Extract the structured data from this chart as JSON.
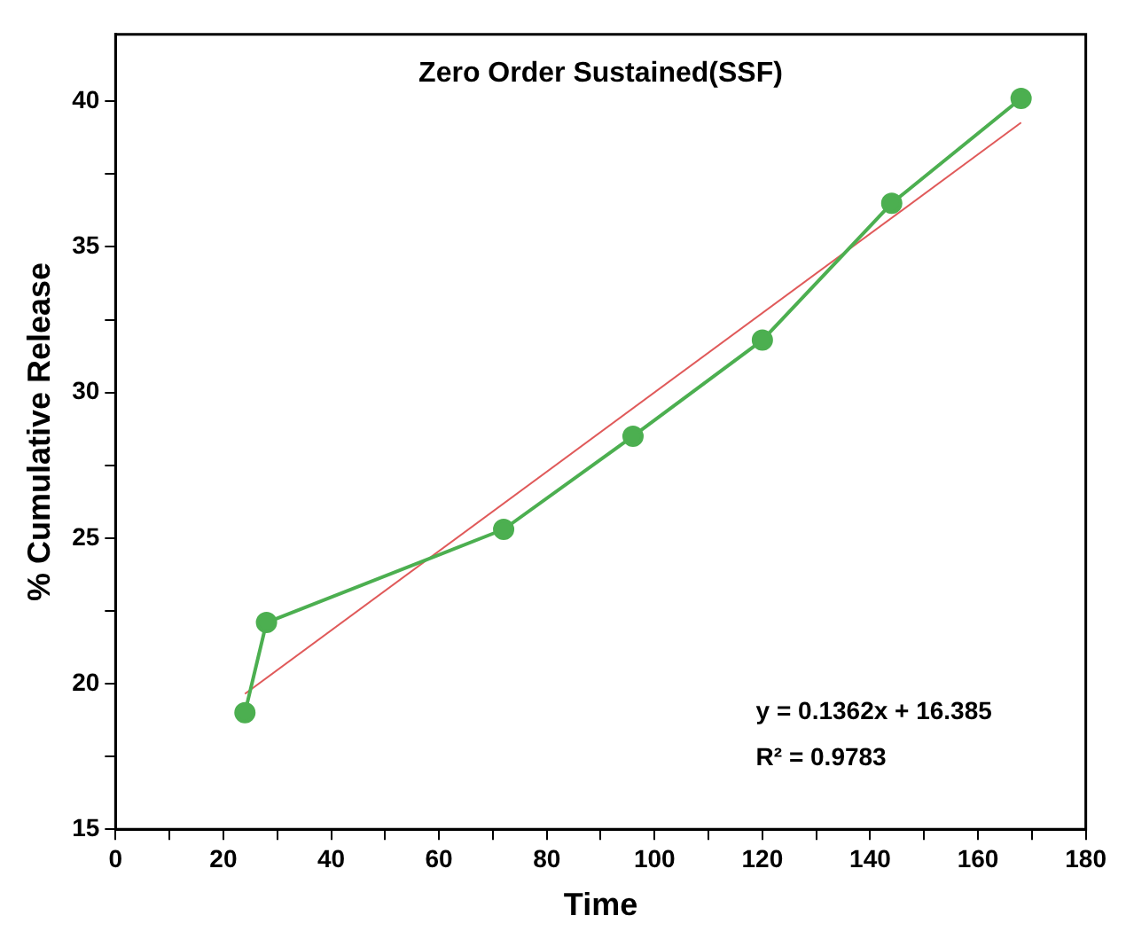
{
  "chart_data": {
    "type": "line",
    "title": "Zero Order Sustained(SSF)",
    "xlabel": "Time",
    "ylabel": "% Cumulative Release",
    "xlim": [
      0,
      180
    ],
    "xticks": [
      0,
      {
        "value": 10,
        "label": null
      },
      20,
      {
        "value": 30,
        "label": null
      },
      40,
      {
        "value": 50,
        "label": null
      },
      60,
      {
        "value": 70,
        "label": null
      },
      80,
      {
        "value": 90,
        "label": null
      },
      100,
      {
        "value": 110,
        "label": null
      },
      120,
      {
        "value": 130,
        "label": null
      },
      140,
      {
        "value": 150,
        "label": null
      },
      160,
      {
        "value": 170,
        "label": null
      },
      180
    ],
    "ylim": [
      15,
      42.3
    ],
    "yticks": [
      15,
      {
        "value": 17.5,
        "label": null
      },
      20,
      {
        "value": 22.5,
        "label": null
      },
      25,
      {
        "value": 27.5,
        "label": null
      },
      30,
      {
        "value": 32.5,
        "label": null
      },
      35,
      {
        "value": 37.5,
        "label": null
      },
      40
    ],
    "grid": false,
    "legend": false,
    "line_style": "solid",
    "series": [
      {
        "type": "line",
        "color": "#4caf50",
        "marker": "circle",
        "x": [
          24,
          28,
          72,
          96,
          120,
          144,
          168
        ],
        "values": [
          19.0,
          22.1,
          25.3,
          28.5,
          31.8,
          36.5,
          40.1
        ]
      },
      {
        "type": "line",
        "color": "#e05a5a",
        "marker": "none",
        "x": [
          24,
          168
        ],
        "values": [
          19.65,
          39.27
        ]
      }
    ],
    "annotations": [
      "y = 0.1362x + 16.385",
      "R² = 0.9783"
    ]
  }
}
